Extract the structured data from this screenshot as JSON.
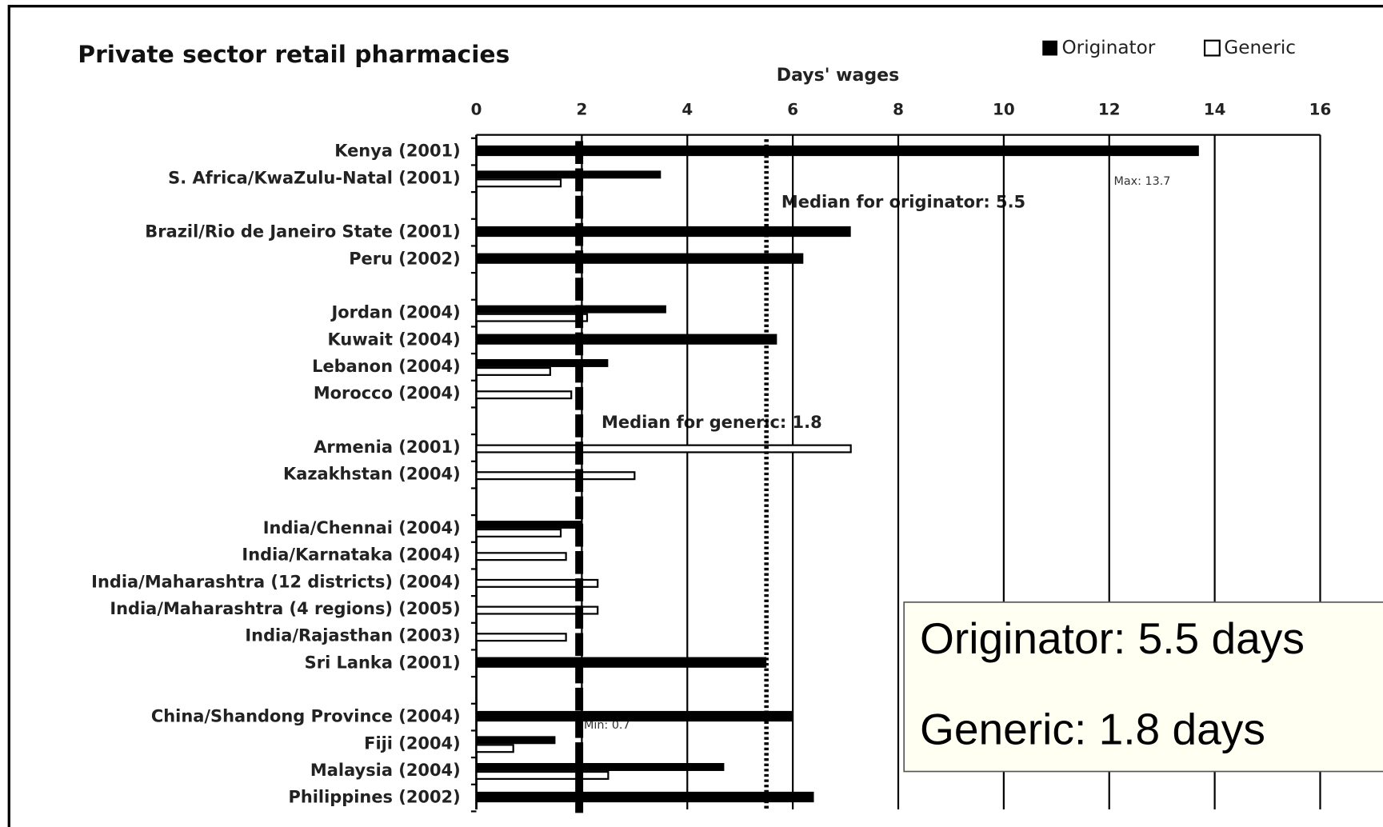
{
  "chart_data": {
    "type": "bar",
    "orientation": "horizontal",
    "title": "Private sector retail pharmacies",
    "x_label": "Days' wages",
    "categories": [
      "Kenya (2001)",
      "S. Africa/KwaZulu-Natal (2001)",
      null,
      "Brazil/Rio de Janeiro State (2001)",
      "Peru (2002)",
      null,
      "Jordan (2004)",
      "Kuwait (2004)",
      "Lebanon (2004)",
      "Morocco (2004)",
      null,
      "Armenia (2001)",
      "Kazakhstan (2004)",
      null,
      "India/Chennai (2004)",
      "India/Karnataka (2004)",
      "India/Maharashtra (12 districts) (2004)",
      "India/Maharashtra (4 regions) (2005)",
      "India/Rajasthan (2003)",
      "Sri Lanka (2001)",
      null,
      "China/Shandong Province (2004)",
      "Fiji (2004)",
      "Malaysia (2004)",
      "Philippines (2002)"
    ],
    "series": [
      {
        "name": "Originator",
        "color": "#000000",
        "values": [
          13.7,
          3.5,
          null,
          7.1,
          6.2,
          null,
          3.6,
          5.7,
          2.5,
          null,
          null,
          null,
          null,
          null,
          2.0,
          null,
          null,
          null,
          null,
          5.5,
          null,
          6.0,
          1.5,
          4.7,
          6.4
        ]
      },
      {
        "name": "Generic",
        "color": "#ffffff",
        "values": [
          null,
          1.6,
          null,
          null,
          null,
          null,
          2.1,
          null,
          1.4,
          1.8,
          null,
          7.1,
          3.0,
          null,
          1.6,
          1.7,
          2.3,
          2.3,
          1.7,
          null,
          null,
          null,
          0.7,
          2.5,
          null
        ]
      }
    ],
    "xlim": [
      0,
      16
    ],
    "xticks": [
      0,
      2,
      4,
      6,
      8,
      10,
      12,
      14,
      16
    ],
    "grid": true,
    "legend": "top-right",
    "medians": {
      "originator": 5.5,
      "generic": 1.8
    },
    "annotations": {
      "max": "Max: 13.7",
      "median_originator": "Median for originator: 5.5",
      "median_generic": "Median for generic: 1.8",
      "min": "Min: 0.7"
    },
    "summary_box": [
      "Originator: 5.5 days",
      "Generic: 1.8 days"
    ]
  }
}
